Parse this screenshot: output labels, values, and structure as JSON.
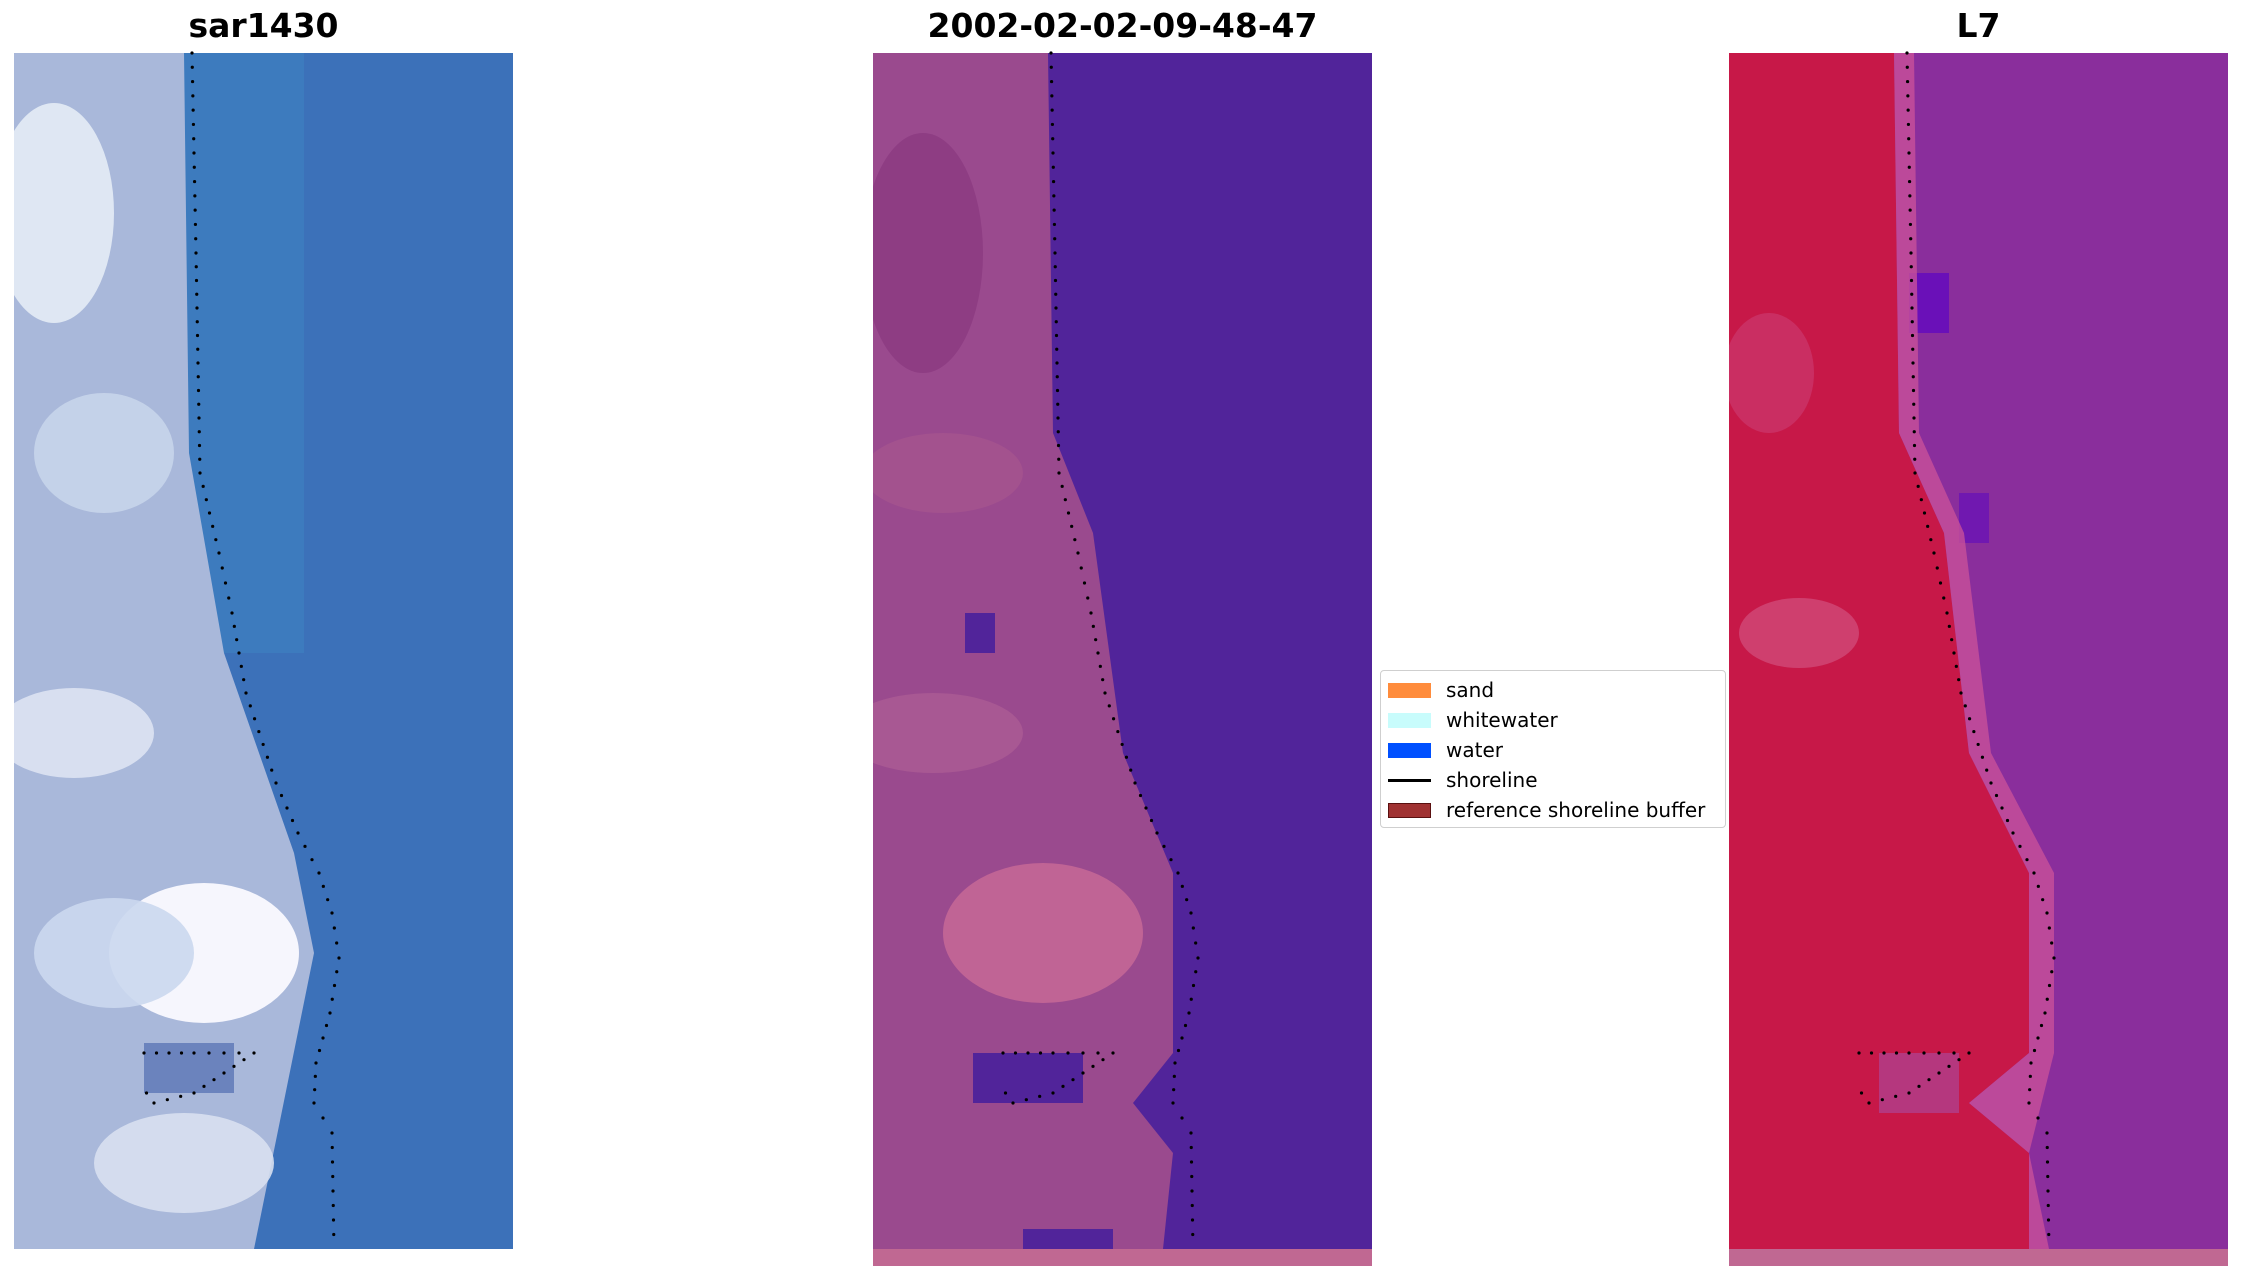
{
  "panels": [
    {
      "title": "sar1430"
    },
    {
      "title": "2002-02-02-09-48-47"
    },
    {
      "title": "L7"
    }
  ],
  "legend": {
    "items": [
      {
        "label": "sand",
        "color": "#ff8c3c",
        "kind": "patch"
      },
      {
        "label": "whitewater",
        "color": "#c8fcfc",
        "kind": "patch"
      },
      {
        "label": "water",
        "color": "#0050ff",
        "kind": "patch"
      },
      {
        "label": "shoreline",
        "color": "#000000",
        "kind": "line"
      },
      {
        "label": "reference shoreline buffer",
        "color": "#a03232",
        "kind": "patch"
      }
    ]
  },
  "colors": {
    "panel1_water": "#3f74bb",
    "panel1_land": "#c9d4ec",
    "panel2_water": "#51249a",
    "panel2_land": "#9a4a8e",
    "panel3_water": "#8a2e9c",
    "panel3_land": "#c20c3c",
    "bottom_strip": "#c06892"
  }
}
